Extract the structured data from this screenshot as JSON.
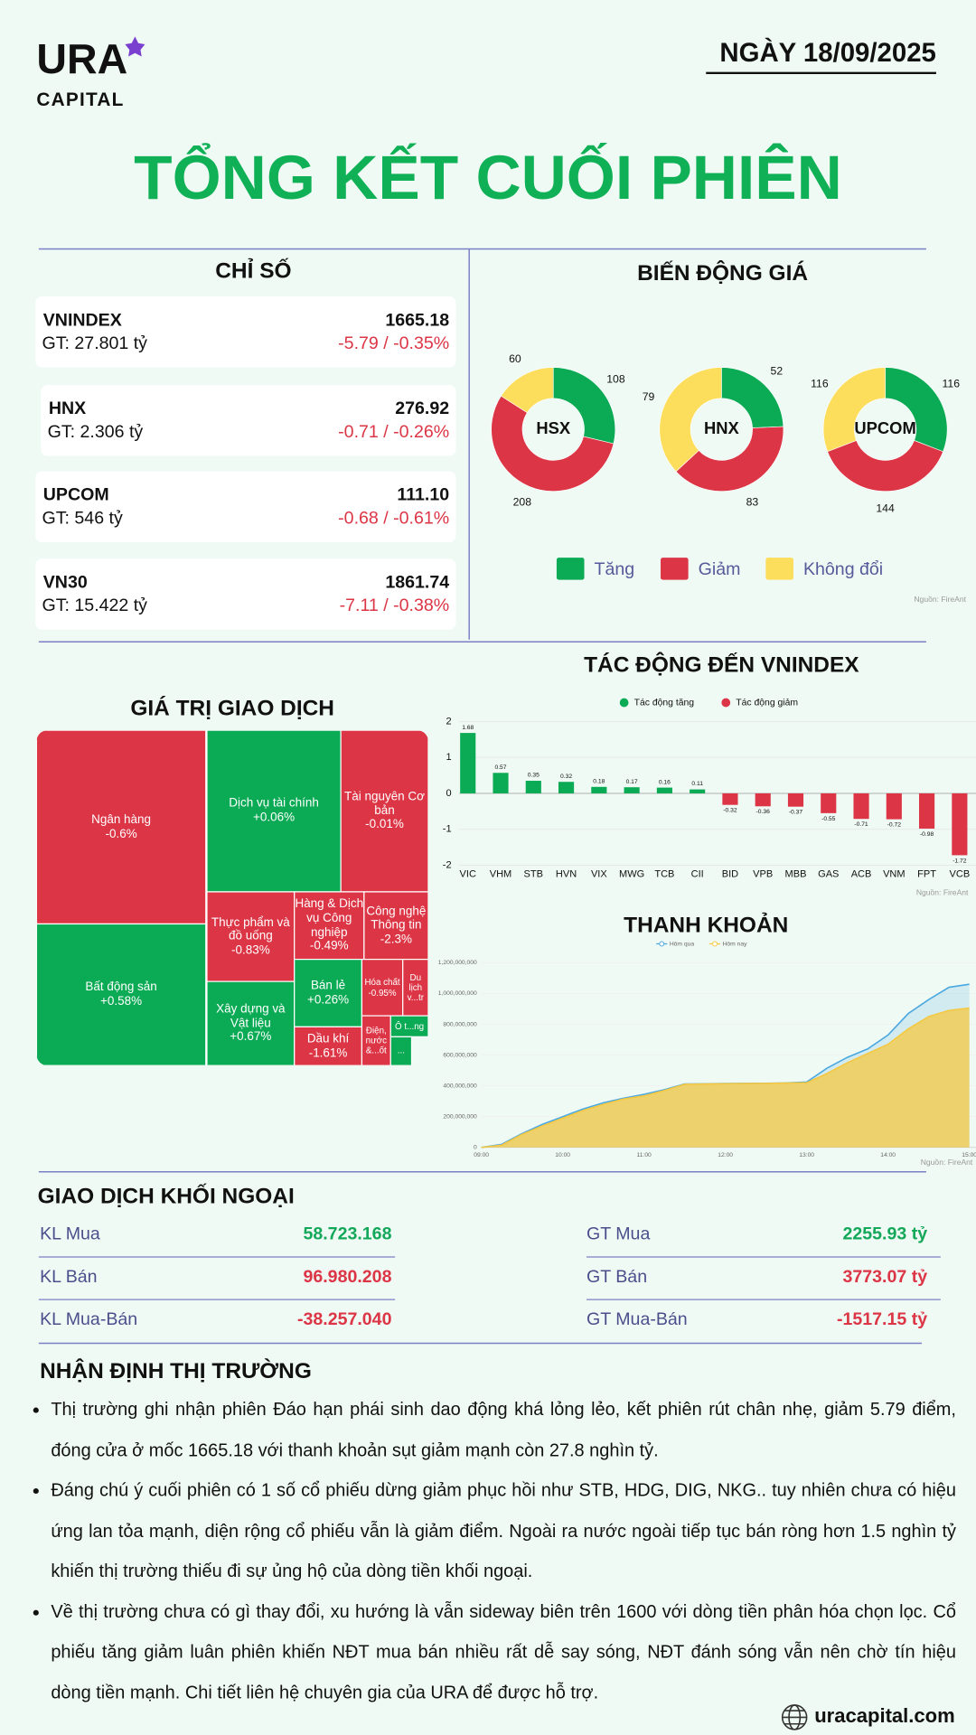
{
  "header": {
    "logo": "URA",
    "logo_sub": "CAPITAL",
    "date": "NGÀY 18/09/2025",
    "title": "TỔNG KẾT CUỐI PHIÊN"
  },
  "indices": {
    "title": "CHỈ SỐ",
    "rows": [
      {
        "name": "VNINDEX",
        "value": "1665.18",
        "turnover": "GT: 27.801 tỷ",
        "change": "-5.79 / -0.35%"
      },
      {
        "name": "HNX",
        "value": "276.92",
        "turnover": "GT: 2.306 tỷ",
        "change": "-0.71 / -0.26%"
      },
      {
        "name": "UPCOM",
        "value": "111.10",
        "turnover": "GT: 546 tỷ",
        "change": "-0.68 / -0.61%"
      },
      {
        "name": "VN30",
        "value": "1861.74",
        "turnover": "GT: 15.422 tỷ",
        "change": "-7.11 / -0.38%"
      }
    ]
  },
  "chart_data": [
    {
      "type": "donut",
      "title": "BIẾN ĐỘNG GIÁ",
      "categories": [
        "Tăng",
        "Giảm",
        "Không đổi"
      ],
      "colors": [
        "#0bab55",
        "#dc3545",
        "#fddd5c"
      ],
      "series": [
        {
          "name": "HSX",
          "values": [
            108,
            208,
            60
          ]
        },
        {
          "name": "HNX",
          "values": [
            52,
            83,
            79
          ]
        },
        {
          "name": "UPCOM",
          "values": [
            116,
            144,
            116
          ]
        }
      ],
      "source": "Nguồn: FireAnt"
    },
    {
      "type": "treemap",
      "title": "GIÁ TRỊ GIAO DỊCH",
      "labels": [
        "Ngân hàng",
        "Bất động sản",
        "Dịch vụ tài chính",
        "Tài nguyên Cơ bản",
        "Thực phẩm và đồ uống",
        "Xây dựng và Vật liệu",
        "Hàng & Dịch vụ Công nghiệp",
        "Công nghệ Thông tin",
        "Bán lẻ",
        "Dầu khí",
        "Hóa chất",
        "Du lịch v...tr",
        "Điện, nước &...ốt",
        "Ô t...ng",
        "..."
      ],
      "values": [
        -0.6,
        0.58,
        0.06,
        -0.01,
        -0.83,
        0.67,
        -0.49,
        -2.3,
        0.26,
        -1.61,
        -0.95,
        null,
        null,
        null,
        null
      ],
      "value_labels": [
        "-0.6%",
        "+0.58%",
        "+0.06%",
        "-0.01%",
        "-0.83%",
        "+0.67%",
        "-0.49%",
        "-2.3%",
        "+0.26%",
        "-1.61%",
        "-0.95%",
        null,
        null,
        null,
        null
      ],
      "colors": [
        "#dc3545",
        "#0bab55",
        "#0bab55",
        "#dc3545",
        "#dc3545",
        "#0bab55",
        "#dc3545",
        "#dc3545",
        "#0bab55",
        "#dc3545",
        "#dc3545",
        "#dc3545",
        "#dc3545",
        "#0bab55",
        "#0bab55"
      ]
    },
    {
      "type": "bar",
      "title": "TÁC ĐỘNG ĐẾN VNINDEX",
      "categories": [
        "VIC",
        "VHM",
        "STB",
        "HVN",
        "VIX",
        "MWG",
        "TCB",
        "CII",
        "BID",
        "VPB",
        "MBB",
        "GAS",
        "ACB",
        "VNM",
        "FPT",
        "VCB"
      ],
      "series": [
        {
          "name": "Tác động tăng",
          "color": "#0bab55",
          "values": [
            1.68,
            0.57,
            0.35,
            0.32,
            0.18,
            0.17,
            0.16,
            0.11,
            null,
            null,
            null,
            null,
            null,
            null,
            null,
            null
          ]
        },
        {
          "name": "Tác động giảm",
          "color": "#dc3545",
          "values": [
            null,
            null,
            null,
            null,
            null,
            null,
            null,
            null,
            -0.32,
            -0.36,
            -0.37,
            -0.55,
            -0.71,
            -0.72,
            -0.98,
            -1.72
          ]
        }
      ],
      "ylim": [
        -2,
        2
      ],
      "yticks": [
        -2,
        -1,
        0,
        1,
        2
      ],
      "grid": true,
      "source": "Nguồn: FireAnt"
    },
    {
      "type": "line",
      "title": "THANH KHOẢN",
      "x": [
        "09:00",
        "09:15",
        "09:30",
        "09:45",
        "10:00",
        "10:15",
        "10:30",
        "10:45",
        "11:00",
        "11:15",
        "11:30",
        "11:45",
        "12:00",
        "12:15",
        "12:30",
        "12:45",
        "13:00",
        "13:15",
        "13:30",
        "13:45",
        "14:00",
        "14:15",
        "14:30",
        "14:45",
        "15:00"
      ],
      "series": [
        {
          "name": "Hôm qua",
          "color": "#4aa8e0",
          "area": true,
          "values": [
            0,
            20000000,
            90000000,
            150000000,
            200000000,
            250000000,
            290000000,
            320000000,
            345000000,
            375000000,
            412000000,
            413000000,
            415000000,
            416000000,
            417000000,
            419000000,
            425000000,
            515000000,
            585000000,
            640000000,
            730000000,
            870000000,
            960000000,
            1040000000,
            1060000000
          ]
        },
        {
          "name": "Hôm nay",
          "color": "#f5c842",
          "area": true,
          "values": [
            0,
            15000000,
            85000000,
            140000000,
            190000000,
            240000000,
            280000000,
            315000000,
            335000000,
            370000000,
            410000000,
            412000000,
            414000000,
            415000000,
            416000000,
            418000000,
            420000000,
            480000000,
            550000000,
            610000000,
            670000000,
            770000000,
            850000000,
            890000000,
            905000000
          ]
        }
      ],
      "xlim": [
        "09:00",
        "15:00"
      ],
      "xticks": [
        "09:00",
        "10:00",
        "11:00",
        "12:00",
        "13:00",
        "14:00",
        "15:00"
      ],
      "ylim": [
        0,
        1200000000
      ],
      "yticks": [
        0,
        {
          "value": 200000000,
          "label": "200,000,000"
        },
        {
          "value": 400000000,
          "label": "400,000,000"
        },
        {
          "value": 600000000,
          "label": "600,000,000"
        },
        {
          "value": 800000000,
          "label": "800,000,000"
        },
        {
          "value": 1000000000,
          "label": "1,000,000,000"
        },
        {
          "value": 1200000000,
          "label": "1,200,000,000"
        }
      ],
      "source": "Nguồn: FireAnt"
    }
  ],
  "foreign": {
    "title": "GIAO DỊCH KHỐI NGOẠI",
    "rows": [
      [
        "KL Mua",
        "58.723.168",
        "GT Mua",
        "2255.93 tỷ"
      ],
      [
        "KL Bán",
        "96.980.208",
        "GT Bán",
        "3773.07 tỷ"
      ],
      [
        "KL Mua-Bán",
        "-38.257.040",
        "GT Mua-Bán",
        "-1517.15 tỷ"
      ]
    ]
  },
  "outlook": {
    "title": "NHẬN ĐỊNH THỊ TRƯỜNG",
    "items": [
      "Thị trường ghi nhận phiên Đáo hạn phái sinh dao động khá lỏng lẻo, kết phiên rút chân nhẹ, giảm 5.79 điểm, đóng cửa ở mốc 1665.18 với thanh khoản sụt giảm mạnh còn 27.8 nghìn tỷ.",
      "Đáng chú ý cuối phiên có 1 số cổ phiếu dừng giảm phục hồi như STB, HDG, DIG, NKG.. tuy nhiên chưa có hiệu ứng lan tỏa mạnh, diện rộng cổ phiếu vẫn là giảm điểm. Ngoài ra nước ngoài tiếp tục bán ròng hơn 1.5 nghìn tỷ khiến thị trường thiếu đi sự ủng hộ của dòng tiền khối ngoại.",
      "Về thị trường chưa có gì thay đổi, xu hướng là vẫn sideway biên trên 1600 với dòng tiền phân hóa chọn lọc. Cổ phiếu tăng giảm luân phiên khiến NĐT mua bán nhiều rất dễ say sóng, NĐT đánh sóng vẫn nên chờ tín hiệu dòng tiền mạnh. Chi tiết liên hệ chuyên gia của URA để được hỗ trợ."
    ]
  },
  "footer": {
    "website": "uracapital.com"
  }
}
